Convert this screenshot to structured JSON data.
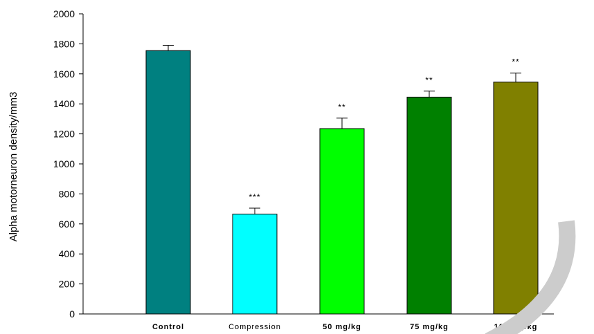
{
  "chart_data": {
    "type": "bar",
    "title": "",
    "xlabel": "",
    "ylabel": "Alpha motorneuron density/mm3",
    "ylim": [
      0,
      2000
    ],
    "yticks": [
      0,
      200,
      400,
      600,
      800,
      1000,
      1200,
      1400,
      1600,
      1800,
      2000
    ],
    "grid": false,
    "legend": "none",
    "categories": [
      "Control",
      "Compression",
      "50 mg/kg",
      "75 mg/kg",
      "100 mg/kg"
    ],
    "category_bold": [
      true,
      false,
      true,
      true,
      true
    ],
    "values": [
      1755,
      665,
      1235,
      1445,
      1545
    ],
    "errors": [
      35,
      40,
      70,
      40,
      60
    ],
    "annotations": [
      "",
      "***",
      "**",
      "**",
      "**"
    ],
    "colors": [
      "#008080",
      "#00ffff",
      "#00ff00",
      "#008000",
      "#808000"
    ]
  }
}
